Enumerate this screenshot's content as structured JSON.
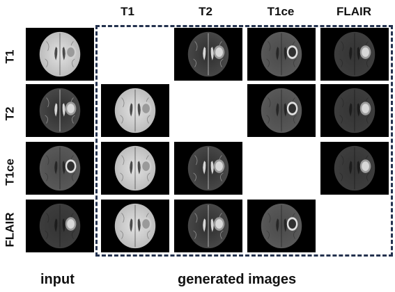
{
  "column_headers": [
    "T1",
    "T2",
    "T1ce",
    "FLAIR"
  ],
  "row_headers": [
    "T1",
    "T2",
    "T1ce",
    "FLAIR"
  ],
  "footer": {
    "left": "input",
    "right": "generated images"
  },
  "frame_color": "#24324f",
  "image_styles": {
    "T1": {
      "brain": "#b9b9b9",
      "inner": "#e2e2e2",
      "ventricle": "#3a3a3a",
      "lesion": "#9a9a9a",
      "lesion_ring": "#d0d0d0"
    },
    "T2": {
      "brain": "#4a4a4a",
      "inner": "#2e2e2e",
      "ventricle": "#e8e8e8",
      "lesion": "#d9d9d9",
      "lesion_ring": "#9a9a9a"
    },
    "T1ce": {
      "brain": "#5a5a5a",
      "inner": "#4a4a4a",
      "ventricle": "#222222",
      "lesion": "#303030",
      "lesion_ring": "#e0e0e0"
    },
    "FLAIR": {
      "brain": "#3e3e3e",
      "inner": "#343434",
      "ventricle": "#1a1a1a",
      "lesion": "#d8d8d8",
      "lesion_ring": "#9c9c9c"
    }
  },
  "grid": [
    [
      "T1",
      null,
      "T2",
      "T1ce",
      "FLAIR"
    ],
    [
      "T2",
      "T1",
      null,
      "T1ce",
      "FLAIR"
    ],
    [
      "T1ce",
      "T1",
      "T2",
      null,
      "FLAIR"
    ],
    [
      "FLAIR",
      "T1",
      "T2",
      "T1ce",
      null
    ]
  ]
}
